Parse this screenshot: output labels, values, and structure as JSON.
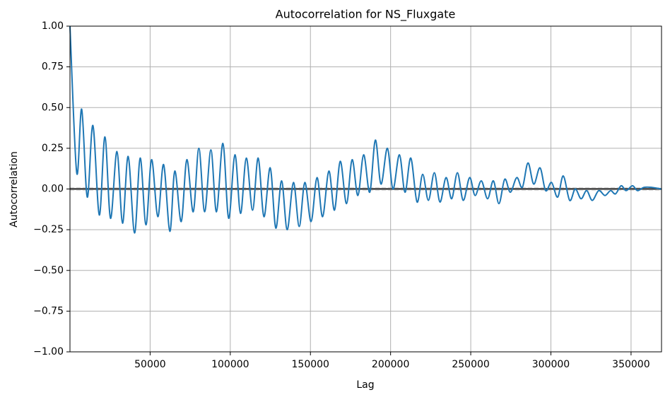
{
  "chart_data": {
    "type": "line",
    "title": "Autocorrelation for NS_Fluxgate",
    "x_label": "Lag",
    "y_label": "Autocorrelation",
    "xlim": [
      1,
      369000
    ],
    "ylim": [
      -1,
      1
    ],
    "xticks": [
      50000,
      100000,
      150000,
      200000,
      250000,
      300000,
      350000
    ],
    "yticks": [
      {
        "value": -1,
        "label": "−1.00"
      },
      {
        "value": -0.75,
        "label": "−0.75"
      },
      {
        "value": -0.5,
        "label": "−0.50"
      },
      {
        "value": -0.25,
        "label": "−0.25"
      },
      {
        "value": 0,
        "label": "0.00"
      },
      {
        "value": 0.25,
        "label": "0.25"
      },
      {
        "value": 0.5,
        "label": "0.50"
      },
      {
        "value": 0.75,
        "label": "0.75"
      },
      {
        "value": 1,
        "label": "1.00"
      }
    ],
    "grid": true,
    "hlines": [
      {
        "value": 0.0042,
        "color": "#808080",
        "dashed": true
      },
      {
        "value": 0.0032,
        "color": "#808080",
        "dashed": false
      },
      {
        "value": 0,
        "color": "#000000",
        "dashed": false
      },
      {
        "value": -0.0032,
        "color": "#808080",
        "dashed": false
      },
      {
        "value": -0.0042,
        "color": "#808080",
        "dashed": true
      }
    ],
    "series": [
      {
        "color": "#1f77b4",
        "x": [
          1,
          4200,
          7300,
          10800,
          14300,
          18300,
          21800,
          25300,
          29300,
          32800,
          36300,
          40300,
          43800,
          47400,
          50900,
          54800,
          58400,
          62300,
          65400,
          69400,
          72900,
          76900,
          80400,
          84000,
          87900,
          91400,
          95400,
          99000,
          102900,
          106400,
          110000,
          113900,
          117400,
          121000,
          124900,
          128400,
          132000,
          135500,
          139400,
          143000,
          146500,
          150400,
          154100,
          157600,
          161500,
          165000,
          168600,
          172500,
          176000,
          179600,
          183200,
          187000,
          190500,
          194000,
          198000,
          201500,
          205500,
          209000,
          212600,
          216500,
          220000,
          223600,
          227300,
          230800,
          234600,
          238100,
          241700,
          245300,
          249300,
          252700,
          256600,
          260500,
          264100,
          267600,
          271200,
          274700,
          278700,
          282200,
          285700,
          289300,
          293200,
          296700,
          300400,
          304200,
          307700,
          311700,
          315200,
          318800,
          322300,
          325800,
          329800,
          333700,
          337200,
          340300,
          343800,
          346900,
          350900,
          354000,
          358000,
          362900,
          368900
        ],
        "values": [
          1.0,
          0.1,
          0.49,
          -0.05,
          0.39,
          -0.16,
          0.32,
          -0.18,
          0.23,
          -0.21,
          0.2,
          -0.27,
          0.19,
          -0.22,
          0.18,
          -0.17,
          0.15,
          -0.26,
          0.11,
          -0.2,
          0.18,
          -0.14,
          0.25,
          -0.14,
          0.24,
          -0.14,
          0.28,
          -0.18,
          0.21,
          -0.15,
          0.19,
          -0.13,
          0.19,
          -0.17,
          0.13,
          -0.24,
          0.05,
          -0.25,
          0.04,
          -0.23,
          0.04,
          -0.2,
          0.07,
          -0.17,
          0.11,
          -0.13,
          0.17,
          -0.09,
          0.18,
          -0.04,
          0.21,
          -0.02,
          0.3,
          0.03,
          0.25,
          0.0,
          0.21,
          -0.02,
          0.19,
          -0.08,
          0.09,
          -0.07,
          0.1,
          -0.08,
          0.07,
          -0.06,
          0.1,
          -0.07,
          0.07,
          -0.04,
          0.05,
          -0.06,
          0.05,
          -0.09,
          0.06,
          -0.02,
          0.07,
          0.01,
          0.16,
          0.03,
          0.13,
          -0.01,
          0.04,
          -0.05,
          0.08,
          -0.07,
          0.0,
          -0.06,
          -0.01,
          -0.07,
          -0.01,
          -0.04,
          -0.01,
          -0.03,
          0.02,
          -0.01,
          0.02,
          -0.01,
          0.01,
          0.01,
          0.0
        ]
      }
    ]
  }
}
